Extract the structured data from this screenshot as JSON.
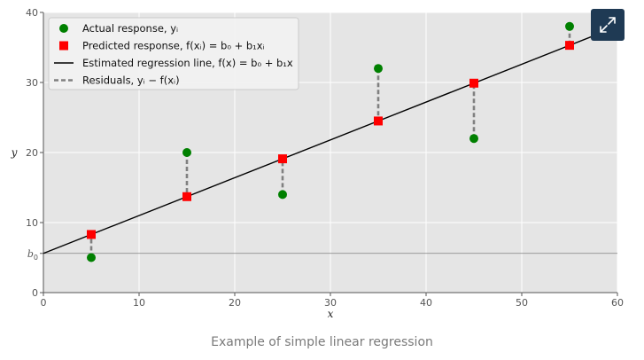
{
  "chart_data": {
    "type": "scatter",
    "xlabel": "x",
    "ylabel": "y",
    "xlim": [
      0,
      60
    ],
    "ylim": [
      0,
      40
    ],
    "x_ticks": [
      "0",
      "10",
      "20",
      "30",
      "40",
      "50",
      "60"
    ],
    "y_ticks": [
      "0",
      "10",
      "20",
      "30",
      "40"
    ],
    "intercept_tick": {
      "label": "b0",
      "value": 5.6
    },
    "grid": true,
    "legend_position": "top-left",
    "regression_line": {
      "intercept": 5.6,
      "slope": 0.54
    },
    "series": [
      {
        "name": "Actual response, yᵢ",
        "marker": "circle",
        "color": "#008000",
        "points": [
          {
            "x": 5,
            "y": 5
          },
          {
            "x": 15,
            "y": 20
          },
          {
            "x": 25,
            "y": 14
          },
          {
            "x": 35,
            "y": 32
          },
          {
            "x": 45,
            "y": 22
          },
          {
            "x": 55,
            "y": 38
          }
        ]
      },
      {
        "name": "Predicted response, f(xᵢ) = b₀ + b₁xᵢ",
        "marker": "square",
        "color": "#ff0000",
        "points": [
          {
            "x": 5,
            "y": 8.3
          },
          {
            "x": 15,
            "y": 13.7
          },
          {
            "x": 25,
            "y": 19.1
          },
          {
            "x": 35,
            "y": 24.5
          },
          {
            "x": 45,
            "y": 29.9
          },
          {
            "x": 55,
            "y": 35.3
          }
        ]
      }
    ],
    "legend": [
      {
        "label": "Actual response, yᵢ",
        "kind": "circle",
        "color": "#008000"
      },
      {
        "label": "Predicted response, f(xᵢ) = b₀ + b₁xᵢ",
        "kind": "square",
        "color": "#ff0000"
      },
      {
        "label": "Estimated regression line, f(x) = b₀ + b₁x",
        "kind": "line",
        "color": "#000000"
      },
      {
        "label": "Residuals, yᵢ − f(xᵢ)",
        "kind": "dashed",
        "color": "#808080"
      }
    ],
    "colors": {
      "plot_background": "#e5e5e5",
      "grid": "#ffffff",
      "actual": "#008000",
      "predicted": "#ff0000",
      "regression_line": "#000000",
      "residual": "#808080",
      "intercept_line": "#808080"
    }
  },
  "caption": "Example of simple linear regression",
  "expand_button": {
    "icon": "expand-arrows-icon",
    "color": "#1f3a54"
  }
}
